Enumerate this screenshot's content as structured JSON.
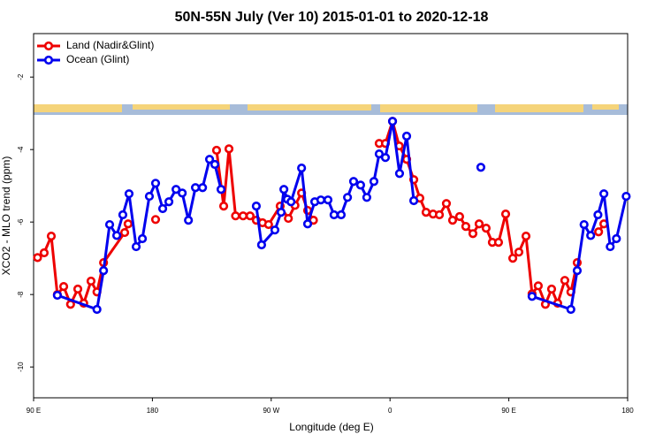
{
  "chart_data": {
    "type": "line",
    "title": "50N-55N July (Ver 10)   2015-01-01 to 2020-12-18",
    "x_label": "Longitude (deg E)",
    "y_label": "XCO2 - MLO trend (ppm)",
    "xlim": [
      90,
      540
    ],
    "ylim": [
      -10.85,
      -0.8
    ],
    "xticks": [
      {
        "value": 90,
        "label": "90 E"
      },
      180,
      {
        "value": 270,
        "label": "90 W"
      },
      {
        "value": 360,
        "label": "0"
      },
      {
        "value": 450,
        "label": "90 E"
      },
      {
        "value": 540,
        "label": "180"
      }
    ],
    "yticks": [
      -10,
      -8,
      -6,
      -4,
      -2
    ],
    "grid": false,
    "legend": "top-left",
    "series": [
      {
        "name": "Land (Nadir&Glint)",
        "color": "#ee0000",
        "x": [
          93,
          98,
          103.4,
          108,
          112.8,
          118,
          123.5,
          128,
          133.5,
          138,
          143,
          159,
          161.6,
          null,
          182.4,
          null,
          228.6,
          234,
          238,
          243,
          248.7,
          254,
          258.7,
          263.4,
          268,
          276.8,
          283,
          288,
          293,
          297.6,
          302,
          null,
          351.8,
          356.5,
          361.9,
          367,
          372.6,
          378,
          382.6,
          387.3,
          392.6,
          397.4,
          402.7,
          407.4,
          412.7,
          417.4,
          422.8,
          427.5,
          432.8,
          437.5,
          442.2,
          447.6,
          453,
          457.6,
          463,
          467.6,
          472.3,
          477.7,
          482.4,
          487,
          492.4,
          497,
          501.8,
          null,
          518,
          522
        ],
        "values": [
          -6.98,
          -6.85,
          -6.39,
          -8.0,
          -7.78,
          -8.27,
          -7.85,
          -8.24,
          -7.63,
          -7.93,
          -7.12,
          -6.29,
          -6.05,
          null,
          -5.93,
          null,
          -4.02,
          -5.56,
          -3.98,
          -5.83,
          -5.83,
          -5.83,
          -5.95,
          -6.02,
          -6.07,
          -5.56,
          -5.9,
          -5.54,
          -5.2,
          -5.68,
          -5.95,
          null,
          -3.83,
          -3.83,
          -3.22,
          -3.9,
          -4.27,
          -4.83,
          -5.34,
          -5.73,
          -5.78,
          -5.8,
          -5.49,
          -5.95,
          -5.85,
          -6.12,
          -6.32,
          -6.05,
          -6.17,
          -6.56,
          -6.56,
          -5.78,
          -7.0,
          -6.83,
          -6.39,
          -7.98,
          -7.76,
          -8.27,
          -7.85,
          -8.24,
          -7.61,
          -7.93,
          -7.12,
          null,
          -6.27,
          -6.05
        ]
      },
      {
        "name": "Ocean (Glint)",
        "color": "#0000ee",
        "x": [
          108,
          138,
          143,
          147.6,
          153,
          157.6,
          162.3,
          167.7,
          172.4,
          177.7,
          182.4,
          187.8,
          192.5,
          197.9,
          202.6,
          207.3,
          212.6,
          218,
          223.3,
          227.3,
          232,
          null,
          258.7,
          262.7,
          272.8,
          277.5,
          279.6,
          282.2,
          285,
          293,
          297.6,
          303,
          307.6,
          313,
          317.6,
          323,
          327.8,
          332.4,
          337.7,
          342.4,
          347.8,
          351.8,
          356.5,
          361.9,
          367.2,
          372.6,
          378,
          null,
          428.8,
          null,
          467.6,
          497,
          501.8,
          507,
          512,
          517.5,
          522,
          526.8,
          531.5,
          538.9
        ],
        "values": [
          -8.02,
          -8.41,
          -7.34,
          -6.07,
          -6.37,
          -5.8,
          -5.22,
          -6.68,
          -6.46,
          -5.29,
          -4.93,
          -5.63,
          -5.44,
          -5.1,
          -5.2,
          -5.95,
          -5.05,
          -5.05,
          -4.27,
          -4.41,
          -5.1,
          null,
          -5.56,
          -6.63,
          -6.22,
          -5.73,
          -5.1,
          -5.37,
          -5.44,
          -4.51,
          -6.05,
          -5.44,
          -5.39,
          -5.39,
          -5.8,
          -5.8,
          -5.32,
          -4.88,
          -4.98,
          -5.32,
          -4.88,
          -4.12,
          -4.22,
          -3.22,
          -4.66,
          -3.63,
          -5.41,
          null,
          -4.49,
          null,
          -8.05,
          -8.41,
          -7.34,
          -6.07,
          -6.37,
          -5.8,
          -5.22,
          -6.68,
          -6.46,
          -5.29
        ]
      }
    ]
  }
}
